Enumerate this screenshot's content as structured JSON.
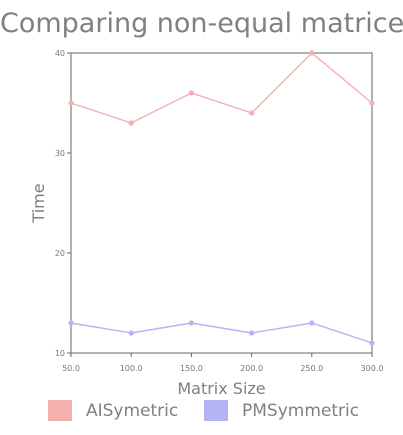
{
  "chart_data": {
    "type": "line",
    "title": "Comparing non-equal matrices",
    "xlabel": "Matrix Size",
    "ylabel": "Time",
    "x": [
      50,
      100,
      150,
      200,
      250,
      300
    ],
    "x_tick_labels": [
      "50.0",
      "100.0",
      "150.0",
      "200.0",
      "250.0",
      "300.0"
    ],
    "y_ticks": [
      10,
      20,
      30,
      40
    ],
    "y_tick_labels": [
      "10",
      "20",
      "30",
      "40"
    ],
    "xlim": [
      50,
      300
    ],
    "ylim": [
      10,
      40
    ],
    "grid": false,
    "legend_position": "bottom",
    "series": [
      {
        "name": "AISymetric",
        "color": "#f4b0ae",
        "values": [
          35,
          33,
          36,
          34,
          40,
          35
        ]
      },
      {
        "name": "PMSymmetric",
        "color": "#b4b4f4",
        "values": [
          13,
          12,
          13,
          12,
          13,
          11
        ]
      }
    ]
  }
}
